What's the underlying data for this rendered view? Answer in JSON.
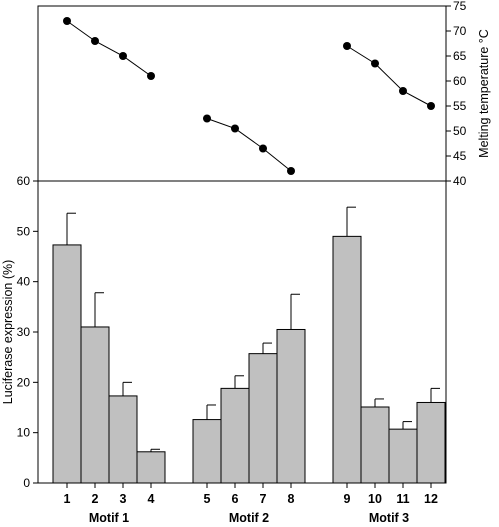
{
  "chart_data": [
    {
      "type": "line",
      "panel": "top",
      "ylabel": "Melting temperature °C",
      "ylim": [
        40,
        75
      ],
      "yticks": [
        40,
        45,
        50,
        55,
        60,
        65,
        70,
        75
      ],
      "y_axis_side": "right",
      "series": [
        {
          "x": [
            1,
            2,
            3,
            4
          ],
          "values": [
            72,
            68,
            65,
            61
          ]
        },
        {
          "x": [
            5,
            6,
            7,
            8
          ],
          "values": [
            52.5,
            50.5,
            46.5,
            42
          ]
        },
        {
          "x": [
            9,
            10,
            11,
            12
          ],
          "values": [
            67,
            63.5,
            58,
            55
          ]
        }
      ],
      "marker": "filled-circle",
      "color": "#000000"
    },
    {
      "type": "bar",
      "panel": "bottom",
      "ylabel": "Luciferase expression (%)",
      "ylim": [
        0,
        60
      ],
      "yticks": [
        0,
        10,
        20,
        30,
        40,
        50,
        60
      ],
      "categories": [
        "1",
        "2",
        "3",
        "4",
        "5",
        "6",
        "7",
        "8",
        "9",
        "10",
        "11",
        "12"
      ],
      "values": [
        47.3,
        31,
        17.3,
        6.2,
        12.6,
        18.8,
        25.7,
        30.5,
        49,
        15.1,
        10.7,
        16
      ],
      "errors": [
        6.3,
        6.8,
        2.7,
        0.5,
        2.9,
        2.5,
        2.1,
        7.0,
        5.8,
        1.6,
        1.5,
        2.8
      ],
      "groups": [
        {
          "label": "Motif 1",
          "members": [
            "1",
            "2",
            "3",
            "4"
          ]
        },
        {
          "label": "Motif 2",
          "members": [
            "5",
            "6",
            "7",
            "8"
          ]
        },
        {
          "label": "Motif 3",
          "members": [
            "9",
            "10",
            "11",
            "12"
          ]
        }
      ],
      "bar_color": "#c0c0c0",
      "grid": false
    }
  ]
}
